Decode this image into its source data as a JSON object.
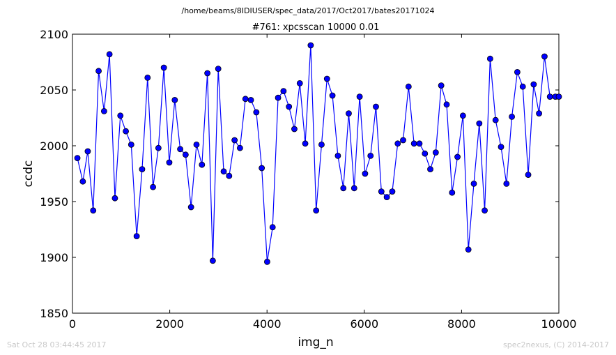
{
  "header": {
    "path": "/home/beams/8IDIUSER/spec_data/2017/Oct2017/bates20171024",
    "scan_title": "#761: xpcsscan 10000 0.01"
  },
  "footer": {
    "timestamp": "Sat Oct 28 03:44:45 2017",
    "credit": "spec2nexus, (C) 2014-2017"
  },
  "colors": {
    "series": "#0000ff",
    "marker_face": "#0000ff",
    "marker_edge": "#000000"
  },
  "chart_data": {
    "type": "line",
    "xlabel": "img_n",
    "ylabel": "ccdc",
    "xlim": [
      0,
      10000
    ],
    "ylim": [
      1850,
      2100
    ],
    "xticks": [
      0,
      2000,
      4000,
      6000,
      8000,
      10000
    ],
    "yticks": [
      1850,
      1900,
      1950,
      2000,
      2050,
      2100
    ],
    "grid": false,
    "markers": "circle",
    "x": [
      101,
      213,
      314,
      426,
      538,
      650,
      761,
      873,
      985,
      1097,
      1208,
      1320,
      1432,
      1544,
      1656,
      1767,
      1879,
      1991,
      2103,
      2215,
      2326,
      2438,
      2550,
      2662,
      2774,
      2885,
      2997,
      3109,
      3221,
      3333,
      3444,
      3556,
      3668,
      3780,
      3892,
      4003,
      4115,
      4227,
      4339,
      4451,
      4562,
      4674,
      4786,
      4898,
      5010,
      5121,
      5233,
      5345,
      5457,
      5569,
      5680,
      5792,
      5904,
      6016,
      6128,
      6239,
      6351,
      6463,
      6575,
      6687,
      6798,
      6910,
      7022,
      7134,
      7246,
      7357,
      7469,
      7581,
      7693,
      7805,
      7916,
      8028,
      8140,
      8252,
      8364,
      8475,
      8587,
      8699,
      8811,
      8923,
      9034,
      9146,
      9258,
      9370,
      9482,
      9593,
      9705,
      9817,
      9929,
      10000
    ],
    "y": [
      1989,
      1968,
      1995,
      1942,
      2067,
      2031,
      2082,
      1953,
      2027,
      2013,
      2001,
      1919,
      1979,
      2061,
      1963,
      1998,
      2070,
      1985,
      2041,
      1997,
      1992,
      1945,
      2001,
      1983,
      2065,
      1897,
      2069,
      1977,
      1973,
      2005,
      1998,
      2042,
      2041,
      2030,
      1980,
      1896,
      1927,
      2043,
      2049,
      2035,
      2015,
      2056,
      2002,
      2090,
      1942,
      2001,
      2060,
      2045,
      1991,
      1962,
      2029,
      1962,
      2044,
      1975,
      1991,
      2035,
      1959,
      1954,
      1959,
      2002,
      2005,
      2053,
      2002,
      2002,
      1993,
      1979,
      1994,
      2054,
      2037,
      1958,
      1990,
      2027,
      1907,
      1966,
      2020,
      1942,
      2078,
      2023,
      1999,
      1966,
      2026,
      2066,
      2053,
      1974,
      2055,
      2029,
      2080,
      2044,
      2044,
      2044
    ]
  }
}
